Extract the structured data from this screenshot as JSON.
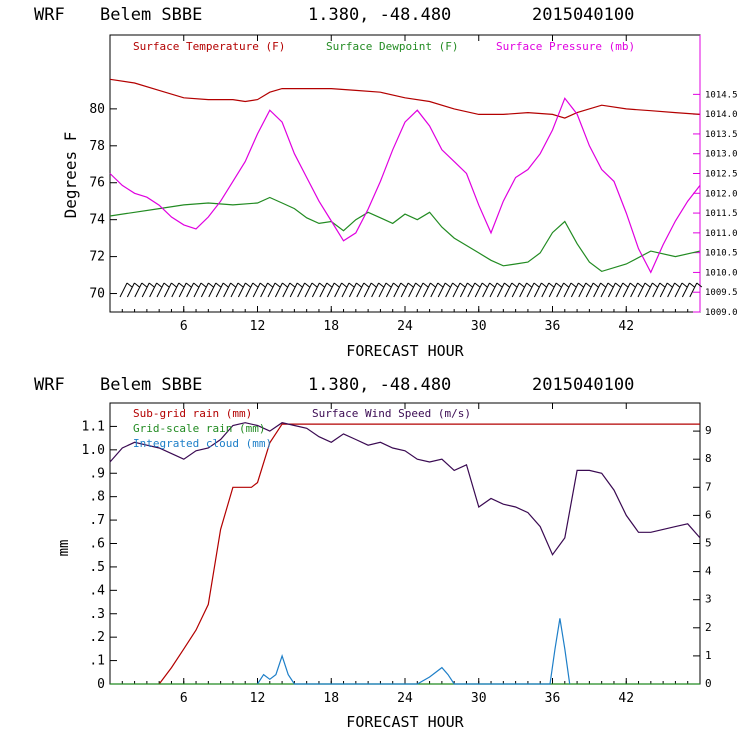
{
  "colors": {
    "temp": "#b30000",
    "dewpoint": "#228b22",
    "pressure": "#e000e0",
    "subgrid_rain": "#b30000",
    "gridscale_rain": "#228b22",
    "cloud": "#1e7fc8",
    "wind": "#3a0a52",
    "axis": "#000000"
  },
  "chart_data": [
    {
      "type": "line",
      "header": {
        "model": "WRF",
        "station": "Belem SBBE",
        "coords": "1.380, -48.480",
        "init": "2015040100"
      },
      "xlabel": "FORECAST HOUR",
      "ylabel": "Degrees F",
      "xlim": [
        0,
        48
      ],
      "xticks": [
        "6",
        "12",
        "18",
        "24",
        "30",
        "36",
        "42"
      ],
      "ylim": [
        69,
        84
      ],
      "yticks": [
        "70",
        "72",
        "74",
        "76",
        "78",
        "80"
      ],
      "y2lim": [
        1009.0,
        1016.0
      ],
      "y2ticks": [
        "1009.0",
        "1009.5",
        "1010.0",
        "1010.5",
        "1011.0",
        "1011.5",
        "1012.0",
        "1012.5",
        "1013.0",
        "1013.5",
        "1014.0",
        "1014.5"
      ],
      "legend": [
        {
          "label": "Surface Temperature (F)",
          "color_key": "temp"
        },
        {
          "label": "Surface Dewpoint (F)",
          "color_key": "dewpoint"
        },
        {
          "label": "Surface Pressure (mb)",
          "color_key": "pressure"
        }
      ],
      "series": [
        {
          "name": "Surface Temperature (F)",
          "axis": "left",
          "color_key": "temp",
          "x": [
            0,
            2,
            4,
            6,
            8,
            10,
            11,
            12,
            13,
            14,
            16,
            18,
            20,
            22,
            24,
            26,
            28,
            30,
            32,
            34,
            36,
            37,
            38,
            40,
            42,
            44,
            46,
            48
          ],
          "y": [
            81.6,
            81.4,
            81.0,
            80.6,
            80.5,
            80.5,
            80.4,
            80.5,
            80.9,
            81.1,
            81.1,
            81.1,
            81.0,
            80.9,
            80.6,
            80.4,
            80.0,
            79.7,
            79.7,
            79.8,
            79.7,
            79.5,
            79.8,
            80.2,
            80.0,
            79.9,
            79.8,
            79.7
          ]
        },
        {
          "name": "Surface Dewpoint (F)",
          "axis": "left",
          "color_key": "dewpoint",
          "x": [
            0,
            2,
            4,
            6,
            8,
            10,
            12,
            13,
            14,
            15,
            16,
            17,
            18,
            19,
            20,
            21,
            22,
            23,
            24,
            25,
            26,
            27,
            28,
            29,
            30,
            31,
            32,
            33,
            34,
            35,
            36,
            37,
            38,
            39,
            40,
            42,
            44,
            46,
            48
          ],
          "y": [
            74.2,
            74.4,
            74.6,
            74.8,
            74.9,
            74.8,
            74.9,
            75.2,
            74.9,
            74.6,
            74.1,
            73.8,
            73.9,
            73.4,
            74.0,
            74.4,
            74.1,
            73.8,
            74.3,
            74.0,
            74.4,
            73.6,
            73.0,
            72.6,
            72.2,
            71.8,
            71.5,
            71.6,
            71.7,
            72.2,
            73.3,
            73.9,
            72.7,
            71.7,
            71.2,
            71.6,
            72.3,
            72.0,
            72.3
          ]
        },
        {
          "name": "Surface Pressure (mb)",
          "axis": "right",
          "color_key": "pressure",
          "x": [
            0,
            1,
            2,
            3,
            4,
            5,
            6,
            7,
            8,
            9,
            10,
            11,
            12,
            13,
            14,
            15,
            16,
            17,
            18,
            19,
            20,
            21,
            22,
            23,
            24,
            25,
            26,
            27,
            28,
            29,
            30,
            31,
            32,
            33,
            34,
            35,
            36,
            37,
            38,
            39,
            40,
            41,
            42,
            43,
            44,
            45,
            46,
            47,
            48
          ],
          "y": [
            1012.5,
            1012.2,
            1012.0,
            1011.9,
            1011.7,
            1011.4,
            1011.2,
            1011.1,
            1011.4,
            1011.8,
            1012.3,
            1012.8,
            1013.5,
            1014.1,
            1013.8,
            1013.0,
            1012.4,
            1011.8,
            1011.3,
            1010.8,
            1011.0,
            1011.6,
            1012.3,
            1013.1,
            1013.8,
            1014.1,
            1013.7,
            1013.1,
            1012.8,
            1012.5,
            1011.7,
            1011.0,
            1011.8,
            1012.4,
            1012.6,
            1013.0,
            1013.6,
            1014.4,
            1014.0,
            1013.2,
            1012.6,
            1012.3,
            1011.5,
            1010.6,
            1010.0,
            1010.7,
            1011.3,
            1011.8,
            1012.2
          ]
        }
      ]
    },
    {
      "type": "line",
      "header": {
        "model": "WRF",
        "station": "Belem SBBE",
        "coords": "1.380, -48.480",
        "init": "2015040100"
      },
      "xlabel": "FORECAST HOUR",
      "ylabel": "mm",
      "xlim": [
        0,
        48
      ],
      "xticks": [
        "6",
        "12",
        "18",
        "24",
        "30",
        "36",
        "42"
      ],
      "ylim": [
        0,
        1.2
      ],
      "yticks": [
        "0",
        ".1",
        ".2",
        ".3",
        ".4",
        ".5",
        ".6",
        ".7",
        ".8",
        ".9",
        "1.0",
        "1.1"
      ],
      "y2lim": [
        0,
        10
      ],
      "y2ticks": [
        "0",
        "1",
        "2",
        "3",
        "4",
        "5",
        "6",
        "7",
        "8",
        "9"
      ],
      "legend": [
        {
          "label": "Sub-grid rain (mm)",
          "color_key": "subgrid_rain"
        },
        {
          "label": "Grid-scale rain (mm)",
          "color_key": "gridscale_rain"
        },
        {
          "label": "Integrated cloud (mm)",
          "color_key": "cloud"
        },
        {
          "label": "Surface Wind Speed (m/s)",
          "color_key": "wind"
        }
      ],
      "series": [
        {
          "name": "Sub-grid rain (mm)",
          "axis": "left",
          "color_key": "subgrid_rain",
          "x": [
            4,
            5,
            6,
            7,
            8,
            9,
            10,
            11,
            11.5,
            12,
            13,
            14,
            48
          ],
          "y": [
            0.0,
            0.07,
            0.15,
            0.23,
            0.34,
            0.66,
            0.84,
            0.84,
            0.84,
            0.86,
            1.03,
            1.11,
            1.11
          ]
        },
        {
          "name": "Grid-scale rain (mm)",
          "axis": "left",
          "color_key": "gridscale_rain",
          "x": [
            0,
            48
          ],
          "y": [
            0,
            0
          ]
        },
        {
          "name": "Integrated cloud (mm)",
          "axis": "left",
          "color_key": "cloud",
          "x": [
            12,
            12.5,
            13,
            13.5,
            14,
            14.5,
            15,
            25,
            26,
            27,
            27.5,
            28,
            35.8,
            36.2,
            36.6,
            37,
            37.4
          ],
          "y": [
            0,
            0.04,
            0.02,
            0.04,
            0.12,
            0.04,
            0,
            0,
            0.03,
            0.07,
            0.04,
            0,
            0,
            0.15,
            0.28,
            0.15,
            0
          ]
        },
        {
          "name": "Surface Wind Speed (m/s)",
          "axis": "right",
          "color_key": "wind",
          "x": [
            0,
            1,
            2,
            3,
            4,
            5,
            6,
            7,
            8,
            9,
            10,
            11,
            12,
            13,
            14,
            15,
            16,
            17,
            18,
            19,
            20,
            21,
            22,
            23,
            24,
            25,
            26,
            27,
            28,
            29,
            30,
            31,
            32,
            33,
            34,
            35,
            36,
            37,
            38,
            39,
            40,
            41,
            42,
            43,
            44,
            45,
            46,
            47,
            48
          ],
          "y": [
            7.9,
            8.4,
            8.6,
            8.5,
            8.4,
            8.2,
            8.0,
            8.3,
            8.4,
            8.7,
            9.2,
            9.3,
            9.2,
            9.0,
            9.3,
            9.2,
            9.1,
            8.8,
            8.6,
            8.9,
            8.7,
            8.5,
            8.6,
            8.4,
            8.3,
            8.0,
            7.9,
            8.0,
            7.6,
            7.8,
            6.3,
            6.6,
            6.4,
            6.3,
            6.1,
            5.6,
            4.6,
            5.2,
            7.6,
            7.6,
            7.5,
            6.9,
            6.0,
            5.4,
            5.4,
            5.5,
            5.6,
            5.7,
            5.2
          ]
        }
      ]
    }
  ]
}
